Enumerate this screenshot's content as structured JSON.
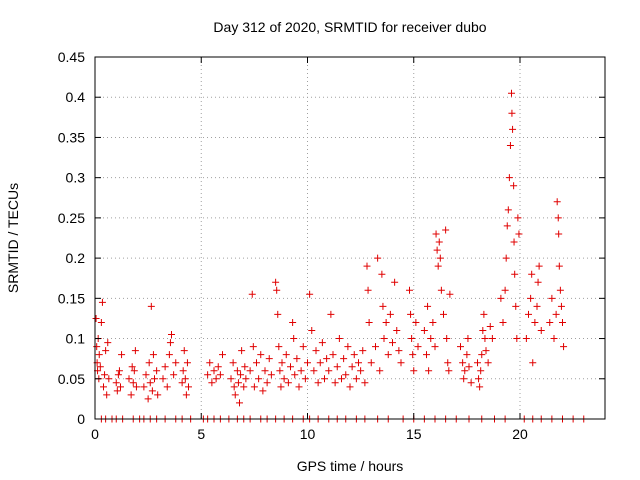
{
  "chart_data": {
    "type": "scatter",
    "title": "Day 312 of 2020, SRMTID for receiver dubo",
    "xlabel": "GPS time / hours",
    "ylabel": "SRMTID / TECUs",
    "xlim": [
      0,
      24
    ],
    "ylim": [
      0,
      0.45
    ],
    "x_ticks": [
      0,
      5,
      10,
      15,
      20
    ],
    "x_tick_labels": [
      "0",
      "5",
      "10",
      "15",
      "20"
    ],
    "y_ticks": [
      0,
      0.05,
      0.1,
      0.15,
      0.2,
      0.25,
      0.3,
      0.35,
      0.4,
      0.45
    ],
    "y_tick_labels": [
      "0",
      "0.05",
      "0.1",
      "0.15",
      "0.2",
      "0.25",
      "0.3",
      "0.35",
      "0.4",
      "0.45"
    ],
    "grid": true,
    "marker": "+",
    "color": "#e00000",
    "series": [
      {
        "name": "SRMTID",
        "points": [
          [
            0.05,
            0.125
          ],
          [
            0.08,
            0.09
          ],
          [
            0.1,
            0.07
          ],
          [
            0.12,
            0.06
          ],
          [
            0.15,
            0.1
          ],
          [
            0.18,
            0.05
          ],
          [
            0.2,
            0.08
          ],
          [
            0.25,
            0.065
          ],
          [
            0.3,
            0.12
          ],
          [
            0.35,
            0.145
          ],
          [
            0.4,
            0.04
          ],
          [
            0.45,
            0.055
          ],
          [
            0.5,
            0.085
          ],
          [
            0.55,
            0.03
          ],
          [
            0.6,
            0.095
          ],
          [
            0.65,
            0.05
          ],
          [
            1.0,
            0.045
          ],
          [
            1.05,
            0.035
          ],
          [
            1.1,
            0.055
          ],
          [
            1.15,
            0.06
          ],
          [
            1.2,
            0.04
          ],
          [
            1.25,
            0.08
          ],
          [
            1.6,
            0.05
          ],
          [
            1.7,
            0.03
          ],
          [
            1.75,
            0.065
          ],
          [
            1.8,
            0.045
          ],
          [
            1.85,
            0.06
          ],
          [
            1.9,
            0.085
          ],
          [
            1.95,
            0.04
          ],
          [
            2.3,
            0.04
          ],
          [
            2.4,
            0.055
          ],
          [
            2.5,
            0.025
          ],
          [
            2.55,
            0.07
          ],
          [
            2.6,
            0.045
          ],
          [
            2.65,
            0.14
          ],
          [
            2.7,
            0.035
          ],
          [
            2.75,
            0.08
          ],
          [
            2.8,
            0.05
          ],
          [
            2.9,
            0.06
          ],
          [
            2.95,
            0.03
          ],
          [
            3.2,
            0.05
          ],
          [
            3.3,
            0.065
          ],
          [
            3.4,
            0.04
          ],
          [
            3.5,
            0.08
          ],
          [
            3.55,
            0.095
          ],
          [
            3.6,
            0.105
          ],
          [
            3.7,
            0.055
          ],
          [
            3.8,
            0.07
          ],
          [
            4.1,
            0.045
          ],
          [
            4.15,
            0.06
          ],
          [
            4.2,
            0.085
          ],
          [
            4.25,
            0.05
          ],
          [
            4.3,
            0.03
          ],
          [
            4.35,
            0.07
          ],
          [
            4.4,
            0.04
          ],
          [
            5.3,
            0.055
          ],
          [
            5.4,
            0.07
          ],
          [
            5.5,
            0.045
          ],
          [
            5.6,
            0.06
          ],
          [
            5.7,
            0.05
          ],
          [
            5.8,
            0.065
          ],
          [
            5.9,
            0.055
          ],
          [
            6.0,
            0.08
          ],
          [
            6.4,
            0.05
          ],
          [
            6.5,
            0.07
          ],
          [
            6.55,
            0.04
          ],
          [
            6.6,
            0.03
          ],
          [
            6.7,
            0.06
          ],
          [
            6.75,
            0.045
          ],
          [
            6.8,
            0.02
          ],
          [
            6.85,
            0.055
          ],
          [
            6.9,
            0.085
          ],
          [
            7.0,
            0.04
          ],
          [
            7.05,
            0.065
          ],
          [
            7.1,
            0.05
          ],
          [
            7.3,
            0.06
          ],
          [
            7.4,
            0.155
          ],
          [
            7.45,
            0.09
          ],
          [
            7.5,
            0.04
          ],
          [
            7.6,
            0.07
          ],
          [
            7.7,
            0.05
          ],
          [
            7.8,
            0.08
          ],
          [
            7.9,
            0.035
          ],
          [
            8.0,
            0.06
          ],
          [
            8.1,
            0.045
          ],
          [
            8.2,
            0.075
          ],
          [
            8.3,
            0.055
          ],
          [
            8.5,
            0.17
          ],
          [
            8.55,
            0.16
          ],
          [
            8.6,
            0.13
          ],
          [
            8.65,
            0.09
          ],
          [
            8.7,
            0.06
          ],
          [
            8.75,
            0.04
          ],
          [
            8.8,
            0.07
          ],
          [
            8.9,
            0.05
          ],
          [
            9.0,
            0.08
          ],
          [
            9.1,
            0.045
          ],
          [
            9.2,
            0.065
          ],
          [
            9.3,
            0.12
          ],
          [
            9.35,
            0.1
          ],
          [
            9.4,
            0.055
          ],
          [
            9.5,
            0.075
          ],
          [
            9.6,
            0.04
          ],
          [
            9.7,
            0.06
          ],
          [
            9.8,
            0.09
          ],
          [
            9.9,
            0.05
          ],
          [
            10.0,
            0.07
          ],
          [
            10.1,
            0.155
          ],
          [
            10.2,
            0.11
          ],
          [
            10.3,
            0.06
          ],
          [
            10.4,
            0.085
          ],
          [
            10.5,
            0.045
          ],
          [
            10.6,
            0.07
          ],
          [
            10.7,
            0.095
          ],
          [
            10.8,
            0.05
          ],
          [
            10.9,
            0.075
          ],
          [
            11.0,
            0.06
          ],
          [
            11.1,
            0.13
          ],
          [
            11.2,
            0.08
          ],
          [
            11.3,
            0.045
          ],
          [
            11.4,
            0.065
          ],
          [
            11.5,
            0.1
          ],
          [
            11.6,
            0.05
          ],
          [
            11.7,
            0.075
          ],
          [
            11.8,
            0.055
          ],
          [
            11.9,
            0.09
          ],
          [
            12.0,
            0.04
          ],
          [
            12.1,
            0.065
          ],
          [
            12.2,
            0.08
          ],
          [
            12.3,
            0.05
          ],
          [
            12.4,
            0.07
          ],
          [
            12.5,
            0.06
          ],
          [
            12.6,
            0.085
          ],
          [
            12.7,
            0.045
          ],
          [
            12.8,
            0.19
          ],
          [
            12.85,
            0.16
          ],
          [
            12.9,
            0.12
          ],
          [
            13.0,
            0.07
          ],
          [
            13.2,
            0.09
          ],
          [
            13.3,
            0.2
          ],
          [
            13.4,
            0.06
          ],
          [
            13.5,
            0.18
          ],
          [
            13.55,
            0.14
          ],
          [
            13.6,
            0.1
          ],
          [
            13.7,
            0.12
          ],
          [
            13.8,
            0.08
          ],
          [
            13.9,
            0.13
          ],
          [
            14.0,
            0.095
          ],
          [
            14.1,
            0.17
          ],
          [
            14.2,
            0.11
          ],
          [
            14.3,
            0.085
          ],
          [
            14.4,
            0.07
          ],
          [
            14.8,
            0.16
          ],
          [
            14.85,
            0.13
          ],
          [
            14.9,
            0.1
          ],
          [
            14.95,
            0.08
          ],
          [
            15.0,
            0.06
          ],
          [
            15.1,
            0.12
          ],
          [
            15.2,
            0.09
          ],
          [
            15.5,
            0.11
          ],
          [
            15.6,
            0.08
          ],
          [
            15.65,
            0.14
          ],
          [
            15.7,
            0.06
          ],
          [
            15.8,
            0.1
          ],
          [
            15.9,
            0.12
          ],
          [
            16.0,
            0.09
          ],
          [
            16.05,
            0.23
          ],
          [
            16.1,
            0.21
          ],
          [
            16.15,
            0.19
          ],
          [
            16.2,
            0.22
          ],
          [
            16.25,
            0.2
          ],
          [
            16.3,
            0.16
          ],
          [
            16.4,
            0.13
          ],
          [
            16.5,
            0.235
          ],
          [
            16.55,
            0.1
          ],
          [
            16.6,
            0.07
          ],
          [
            16.65,
            0.06
          ],
          [
            16.7,
            0.155
          ],
          [
            17.2,
            0.09
          ],
          [
            17.3,
            0.07
          ],
          [
            17.35,
            0.05
          ],
          [
            17.4,
            0.06
          ],
          [
            17.5,
            0.08
          ],
          [
            17.55,
            0.1
          ],
          [
            17.6,
            0.065
          ],
          [
            17.7,
            0.045
          ],
          [
            18.0,
            0.07
          ],
          [
            18.05,
            0.05
          ],
          [
            18.1,
            0.04
          ],
          [
            18.15,
            0.06
          ],
          [
            18.2,
            0.08
          ],
          [
            18.25,
            0.11
          ],
          [
            18.3,
            0.13
          ],
          [
            18.35,
            0.1
          ],
          [
            18.4,
            0.085
          ],
          [
            18.5,
            0.07
          ],
          [
            18.6,
            0.115
          ],
          [
            18.7,
            0.1
          ],
          [
            19.1,
            0.15
          ],
          [
            19.2,
            0.12
          ],
          [
            19.3,
            0.16
          ],
          [
            19.35,
            0.2
          ],
          [
            19.4,
            0.24
          ],
          [
            19.45,
            0.26
          ],
          [
            19.5,
            0.3
          ],
          [
            19.55,
            0.34
          ],
          [
            19.6,
            0.405
          ],
          [
            19.62,
            0.38
          ],
          [
            19.65,
            0.36
          ],
          [
            19.7,
            0.29
          ],
          [
            19.72,
            0.22
          ],
          [
            19.75,
            0.18
          ],
          [
            19.8,
            0.14
          ],
          [
            19.85,
            0.1
          ],
          [
            19.9,
            0.25
          ],
          [
            19.95,
            0.23
          ],
          [
            20.3,
            0.1
          ],
          [
            20.4,
            0.13
          ],
          [
            20.5,
            0.15
          ],
          [
            20.55,
            0.18
          ],
          [
            20.6,
            0.07
          ],
          [
            20.7,
            0.12
          ],
          [
            20.8,
            0.14
          ],
          [
            20.85,
            0.17
          ],
          [
            20.9,
            0.19
          ],
          [
            21.0,
            0.11
          ],
          [
            21.4,
            0.12
          ],
          [
            21.5,
            0.15
          ],
          [
            21.6,
            0.1
          ],
          [
            21.7,
            0.13
          ],
          [
            21.75,
            0.27
          ],
          [
            21.8,
            0.25
          ],
          [
            21.82,
            0.23
          ],
          [
            21.85,
            0.19
          ],
          [
            21.9,
            0.16
          ],
          [
            21.95,
            0.14
          ],
          [
            22.0,
            0.12
          ],
          [
            22.05,
            0.09
          ]
        ],
        "zero_points_x": [
          0.3,
          0.5,
          0.8,
          1.0,
          1.3,
          1.8,
          2.1,
          2.3,
          2.6,
          2.9,
          3.3,
          3.8,
          4.1,
          4.5,
          5.1,
          5.3,
          5.6,
          5.9,
          6.3,
          6.7,
          7.0,
          7.3,
          7.8,
          8.1,
          8.5,
          8.9,
          9.3,
          9.8,
          10.1,
          10.5,
          11.0,
          11.4,
          11.8,
          12.3,
          12.7,
          13.3,
          13.8,
          14.5,
          15.0,
          15.5,
          16.0,
          16.5,
          17.0,
          17.6,
          18.2,
          18.8,
          19.3,
          20.2,
          20.6,
          21.0,
          21.5,
          22.0,
          22.5,
          23.0
        ]
      }
    ]
  }
}
